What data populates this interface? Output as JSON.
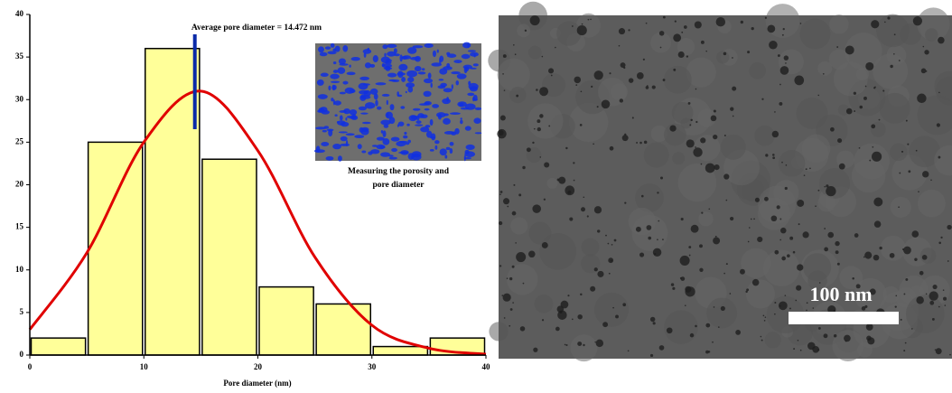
{
  "chart_data": {
    "type": "histogram",
    "xlabel": "Pore diameter (nm)",
    "annotation": "Average pore diameter = 14.472 nm",
    "average": 14.472,
    "average_color": "#0a2aa8",
    "inset_caption": [
      "Measuring the porosity and",
      "pore diameter"
    ],
    "bins": [
      0,
      5,
      10,
      15,
      20,
      25,
      30,
      35,
      40
    ],
    "values": [
      2,
      25,
      36,
      23,
      8,
      6,
      1,
      2
    ],
    "color": "#ffff99",
    "fit": {
      "color": "#e00000",
      "x": [
        0,
        5,
        10,
        15,
        20,
        25,
        30,
        35,
        40
      ],
      "values": [
        3,
        12,
        25,
        31,
        24,
        11.5,
        3.5,
        0.8,
        0.1
      ]
    },
    "xlim": [
      0,
      40
    ],
    "ylim": [
      0,
      40
    ],
    "xticks": [
      0,
      10,
      20,
      30,
      40
    ],
    "yticks": [
      0,
      5,
      10,
      15,
      20,
      25,
      30,
      35,
      40
    ]
  },
  "image": {
    "scale_bar": "100 nm"
  }
}
